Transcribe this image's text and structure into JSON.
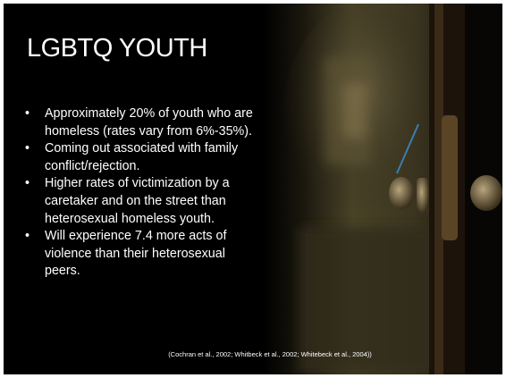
{
  "slide": {
    "title": "LGBTQ YOUTH",
    "bullets": [
      [
        "Approximately 20% of youth who are",
        "homeless (rates vary from 6%-35%)."
      ],
      [
        "Coming out associated with family",
        "conflict/rejection."
      ],
      [
        "Higher rates of victimization by a",
        "caretaker and on the street than",
        "heterosexual homeless youth."
      ],
      [
        "Will experience 7.4 more acts of",
        "violence  than their heterosexual",
        "peers."
      ]
    ],
    "citation": "(Cochran et al., 2002; Whitbeck et al., 2002; Whitebeck et al., 2004))"
  }
}
